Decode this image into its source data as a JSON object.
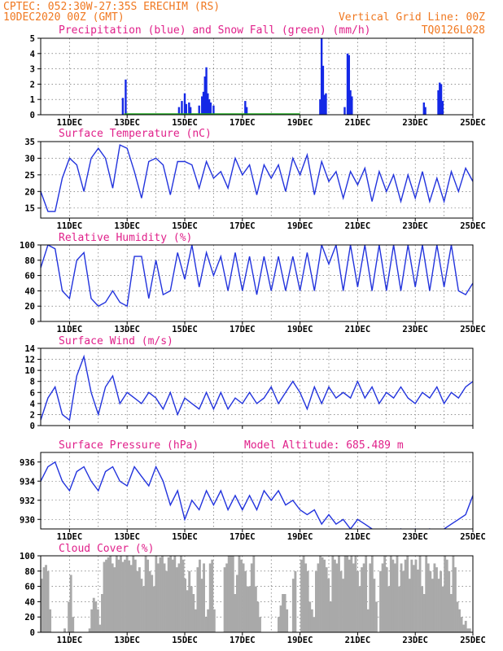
{
  "header": {
    "line1": "CPTEC:   052:30W-27:35S   ERECHIM (RS)",
    "line2": "10DEC2020 00Z (GMT)",
    "right1": "Vertical Grid Line: 00Z",
    "right2": "TQ0126L028"
  },
  "x_labels": [
    "11DEC",
    "13DEC",
    "15DEC",
    "17DEC",
    "19DEC",
    "21DEC",
    "23DEC",
    "25DEC"
  ],
  "colors": {
    "header": "#f07820",
    "title": "#e0208a",
    "line": "#2233dd",
    "precip": "#1428e6",
    "snow": "#22aa22",
    "cloud": "#a9a9a9"
  },
  "chart_data": [
    {
      "type": "bar",
      "title": "Precipitation (blue) and Snow Fall (green) (mm/h)",
      "ylim": [
        0,
        5
      ],
      "yticks": [
        0,
        1,
        2,
        3,
        4,
        5
      ],
      "series": [
        {
          "name": "Precipitation",
          "points": [
            [
              2.85,
              1.1
            ],
            [
              2.95,
              2.3
            ],
            [
              4.8,
              0.5
            ],
            [
              4.9,
              0.9
            ],
            [
              5.0,
              1.4
            ],
            [
              5.05,
              0.7
            ],
            [
              5.15,
              0.8
            ],
            [
              5.2,
              0.5
            ],
            [
              5.5,
              0.6
            ],
            [
              5.6,
              1.2
            ],
            [
              5.65,
              1.5
            ],
            [
              5.7,
              2.5
            ],
            [
              5.75,
              3.1
            ],
            [
              5.8,
              1.4
            ],
            [
              5.85,
              1.0
            ],
            [
              5.9,
              0.8
            ],
            [
              6.0,
              0.6
            ],
            [
              7.1,
              0.9
            ],
            [
              7.15,
              0.5
            ],
            [
              9.7,
              1.0
            ],
            [
              9.75,
              5.0
            ],
            [
              9.8,
              3.2
            ],
            [
              9.85,
              1.3
            ],
            [
              9.9,
              1.4
            ],
            [
              10.55,
              0.5
            ],
            [
              10.65,
              4.0
            ],
            [
              10.7,
              3.9
            ],
            [
              10.75,
              1.6
            ],
            [
              10.8,
              1.2
            ],
            [
              13.3,
              0.8
            ],
            [
              13.35,
              0.5
            ],
            [
              13.8,
              1.6
            ],
            [
              13.85,
              2.1
            ],
            [
              13.9,
              2.0
            ],
            [
              13.95,
              0.9
            ]
          ]
        },
        {
          "name": "Snow Fall",
          "points": []
        }
      ]
    },
    {
      "type": "line",
      "title": "Surface Temperature (nC)",
      "ylim": [
        12,
        35
      ],
      "yticks": [
        15,
        20,
        25,
        30,
        35
      ],
      "x": [
        0,
        0.25,
        0.5,
        0.75,
        1,
        1.25,
        1.5,
        1.75,
        2,
        2.25,
        2.5,
        2.75,
        3,
        3.25,
        3.5,
        3.75,
        4,
        4.25,
        4.5,
        4.75,
        5,
        5.25,
        5.5,
        5.75,
        6,
        6.25,
        6.5,
        6.75,
        7,
        7.25,
        7.5,
        7.75,
        8,
        8.25,
        8.5,
        8.75,
        9,
        9.25,
        9.5,
        9.75,
        10,
        10.25,
        10.5,
        10.75,
        11,
        11.25,
        11.5,
        11.75,
        12,
        12.25,
        12.5,
        12.75,
        13,
        13.25,
        13.5,
        13.75,
        14,
        14.25,
        14.5,
        14.75,
        15
      ],
      "values": [
        20,
        14,
        14,
        24,
        30,
        28,
        20,
        30,
        33,
        30,
        21,
        34,
        33,
        26,
        18,
        29,
        30,
        28,
        19,
        29,
        29,
        28,
        21,
        29,
        24,
        26,
        21,
        30,
        25,
        28,
        19,
        28,
        24,
        28,
        20,
        30,
        25,
        31,
        19,
        29,
        23,
        26,
        18,
        26,
        22,
        27,
        17,
        26,
        20,
        25,
        17,
        25,
        18,
        26,
        17,
        24,
        17,
        26,
        20,
        27,
        23
      ]
    },
    {
      "type": "line",
      "title": "Relative Humidity (%)",
      "ylim": [
        0,
        100
      ],
      "yticks": [
        0,
        20,
        40,
        60,
        80,
        100
      ],
      "x": [
        0,
        0.25,
        0.5,
        0.75,
        1,
        1.25,
        1.5,
        1.75,
        2,
        2.25,
        2.5,
        2.75,
        3,
        3.25,
        3.5,
        3.75,
        4,
        4.25,
        4.5,
        4.75,
        5,
        5.25,
        5.5,
        5.75,
        6,
        6.25,
        6.5,
        6.75,
        7,
        7.25,
        7.5,
        7.75,
        8,
        8.25,
        8.5,
        8.75,
        9,
        9.25,
        9.5,
        9.75,
        10,
        10.25,
        10.5,
        10.75,
        11,
        11.25,
        11.5,
        11.75,
        12,
        12.25,
        12.5,
        12.75,
        13,
        13.25,
        13.5,
        13.75,
        14,
        14.25,
        14.5,
        14.75,
        15
      ],
      "values": [
        70,
        100,
        95,
        40,
        30,
        80,
        90,
        30,
        20,
        25,
        40,
        25,
        20,
        85,
        85,
        30,
        80,
        35,
        40,
        90,
        55,
        100,
        45,
        90,
        60,
        85,
        40,
        90,
        40,
        85,
        35,
        85,
        40,
        85,
        40,
        85,
        40,
        90,
        40,
        100,
        75,
        100,
        40,
        100,
        45,
        100,
        40,
        100,
        40,
        100,
        40,
        100,
        45,
        100,
        40,
        100,
        45,
        100,
        40,
        35,
        50
      ]
    },
    {
      "type": "line",
      "title": "Surface Wind (m/s)",
      "ylim": [
        0,
        14
      ],
      "yticks": [
        0,
        2,
        4,
        6,
        8,
        10,
        12,
        14
      ],
      "x": [
        0,
        0.25,
        0.5,
        0.75,
        1,
        1.25,
        1.5,
        1.75,
        2,
        2.25,
        2.5,
        2.75,
        3,
        3.25,
        3.5,
        3.75,
        4,
        4.25,
        4.5,
        4.75,
        5,
        5.25,
        5.5,
        5.75,
        6,
        6.25,
        6.5,
        6.75,
        7,
        7.25,
        7.5,
        7.75,
        8,
        8.25,
        8.5,
        8.75,
        9,
        9.25,
        9.5,
        9.75,
        10,
        10.25,
        10.5,
        10.75,
        11,
        11.25,
        11.5,
        11.75,
        12,
        12.25,
        12.5,
        12.75,
        13,
        13.25,
        13.5,
        13.75,
        14,
        14.25,
        14.5,
        14.75,
        15
      ],
      "values": [
        1,
        5,
        7,
        2,
        1,
        9,
        12.5,
        6,
        2,
        7,
        9,
        4,
        6,
        5,
        4,
        6,
        5,
        3,
        6,
        2,
        5,
        4,
        3,
        6,
        3,
        6,
        3,
        5,
        4,
        6,
        4,
        5,
        7,
        4,
        6,
        8,
        6,
        3,
        7,
        4,
        7,
        5,
        6,
        5,
        8,
        5,
        7,
        4,
        6,
        5,
        7,
        5,
        4,
        6,
        5,
        7,
        4,
        6,
        5,
        7,
        8
      ]
    },
    {
      "type": "line",
      "title": "Surface Pressure (hPa)",
      "subtitle": "Model Altitude: 685.489 m",
      "ylim": [
        929,
        937
      ],
      "yticks": [
        930,
        932,
        934,
        936
      ],
      "x": [
        0,
        0.25,
        0.5,
        0.75,
        1,
        1.25,
        1.5,
        1.75,
        2,
        2.25,
        2.5,
        2.75,
        3,
        3.25,
        3.5,
        3.75,
        4,
        4.25,
        4.5,
        4.75,
        5,
        5.25,
        5.5,
        5.75,
        6,
        6.25,
        6.5,
        6.75,
        7,
        7.25,
        7.5,
        7.75,
        8,
        8.25,
        8.5,
        8.75,
        9,
        9.25,
        9.5,
        9.75,
        10,
        10.25,
        10.5,
        10.75,
        11,
        11.25,
        11.5,
        11.75,
        12,
        12.25,
        12.5,
        12.75,
        13,
        13.25,
        13.5,
        13.75,
        14,
        14.25,
        14.5,
        14.75,
        15
      ],
      "values": [
        934,
        935.5,
        936,
        934,
        933,
        935,
        935.5,
        934,
        933,
        935,
        935.5,
        934,
        933.5,
        935.5,
        934.5,
        933.5,
        935.5,
        934,
        931.5,
        933,
        930,
        932,
        931,
        933,
        931.5,
        933,
        931,
        932.5,
        931,
        932.5,
        931,
        933,
        932,
        933,
        931.5,
        932,
        931,
        930.5,
        931,
        929.5,
        930.5,
        929.5,
        930,
        929,
        930,
        929.5,
        929,
        928.5,
        929,
        928,
        929,
        928,
        929,
        928,
        929,
        928,
        929,
        929.5,
        930,
        930.5,
        932.5
      ]
    },
    {
      "type": "bar",
      "title": "Cloud Cover (%)",
      "ylim": [
        0,
        100
      ],
      "yticks": [
        0,
        20,
        40,
        60,
        80,
        100
      ],
      "values": [
        70,
        85,
        88,
        80,
        30,
        0,
        0,
        0,
        0,
        0,
        0,
        5,
        0,
        40,
        75,
        20,
        0,
        0,
        0,
        0,
        0,
        0,
        0,
        5,
        30,
        45,
        40,
        30,
        10,
        50,
        92,
        95,
        98,
        100,
        90,
        85,
        100,
        95,
        100,
        92,
        95,
        100,
        94,
        88,
        100,
        95,
        80,
        85,
        70,
        60,
        100,
        95,
        80,
        75,
        60,
        100,
        90,
        98,
        100,
        90,
        80,
        98,
        100,
        95,
        100,
        85,
        90,
        100,
        95,
        70,
        55,
        80,
        60,
        50,
        30,
        85,
        95,
        70,
        90,
        20,
        30,
        90,
        95,
        30,
        0,
        0,
        0,
        0,
        85,
        90,
        100,
        100,
        100,
        50,
        75,
        100,
        95,
        90,
        80,
        60,
        60,
        90,
        100,
        60,
        40,
        20,
        0,
        0,
        0,
        0,
        0,
        0,
        0,
        0,
        20,
        35,
        50,
        50,
        30,
        0,
        0,
        70,
        80,
        0,
        0,
        95,
        100,
        90,
        80,
        40,
        30,
        20,
        80,
        90,
        100,
        98,
        95,
        85,
        70,
        40,
        100,
        95,
        90,
        100,
        80,
        70,
        100,
        100,
        95,
        100,
        90,
        100,
        80,
        60,
        85,
        90,
        100,
        30,
        90,
        100,
        70,
        40,
        0,
        80,
        90,
        100,
        85,
        60,
        100,
        95,
        90,
        100,
        60,
        90,
        80,
        95,
        100,
        70,
        95,
        88,
        95,
        82,
        100,
        60,
        50,
        100,
        90,
        80,
        70,
        90,
        85,
        70,
        80,
        60,
        100,
        95,
        80,
        50,
        100,
        85,
        40,
        30,
        20,
        10,
        15,
        5,
        5,
        0
      ]
    }
  ]
}
